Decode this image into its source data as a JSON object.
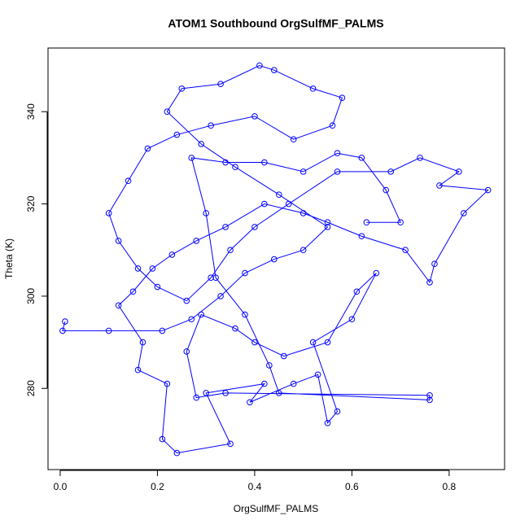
{
  "chart_data": {
    "type": "line",
    "title": "ATOM1 Southbound OrgSulfMF_PALMS",
    "x_label": "OrgSulfMF_PALMS",
    "y_label": "Theta (K)",
    "color": "#0000ff",
    "markers": true,
    "xlim": [
      -0.025,
      0.914
    ],
    "ylim": [
      262.4,
      353.8
    ],
    "xticks": [
      {
        "value": 0,
        "label": "0.0"
      },
      0.2,
      0.4,
      0.6,
      0.8
    ],
    "yticks": [
      280,
      300,
      320,
      340
    ],
    "x": [
      0.01,
      0.005,
      0.1,
      0.21,
      0.27,
      0.33,
      0.38,
      0.44,
      0.5,
      0.55,
      0.45,
      0.36,
      0.29,
      0.22,
      0.25,
      0.33,
      0.41,
      0.44,
      0.52,
      0.58,
      0.56,
      0.48,
      0.4,
      0.31,
      0.24,
      0.18,
      0.14,
      0.1,
      0.12,
      0.16,
      0.2,
      0.26,
      0.31,
      0.35,
      0.4,
      0.47,
      0.57,
      0.68,
      0.74,
      0.82,
      0.78,
      0.88,
      0.83,
      0.77,
      0.76,
      0.71,
      0.62,
      0.55,
      0.5,
      0.42,
      0.34,
      0.28,
      0.23,
      0.19,
      0.15,
      0.12,
      0.17,
      0.16,
      0.22,
      0.21,
      0.24,
      0.35,
      0.3,
      0.42,
      0.39,
      0.48,
      0.53,
      0.55,
      0.57,
      0.52,
      0.6,
      0.65,
      0.61,
      0.55,
      0.46,
      0.4,
      0.36,
      0.29,
      0.26,
      0.28,
      0.34,
      0.76,
      0.76,
      0.45,
      0.43,
      0.38,
      0.32,
      0.3,
      0.27,
      0.34,
      0.42,
      0.5,
      0.57,
      0.62,
      0.67,
      0.7,
      0.63
    ],
    "values": [
      294.5,
      292.5,
      292.5,
      292.5,
      295,
      300,
      305,
      308,
      310,
      315,
      322,
      328,
      333,
      340,
      345,
      346,
      350,
      349,
      345,
      343,
      337,
      334,
      339,
      337,
      335,
      332,
      325,
      318,
      312,
      306,
      302,
      299,
      304,
      310,
      315,
      320,
      327,
      327,
      330,
      327,
      324,
      323,
      318,
      307,
      303,
      310,
      313,
      316,
      318,
      320,
      315,
      312,
      309,
      306,
      301,
      298,
      290,
      284,
      281,
      269,
      266,
      268,
      279,
      281,
      277,
      281,
      283,
      272.5,
      275,
      290,
      295,
      305,
      301,
      290,
      287,
      290,
      293,
      296,
      288,
      278,
      279,
      278.5,
      277.5,
      279,
      285,
      296,
      304,
      318,
      330,
      329,
      329,
      327,
      331,
      330,
      323,
      316,
      316
    ]
  }
}
